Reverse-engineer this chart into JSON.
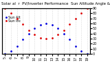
{
  "title": "Solar al  r  PV/Inverter Performance  Sun Altitude Angle & Sun Incidence Angle on PV Panels",
  "legend1": "Sun Alt",
  "legend2": "Sun Inc",
  "x": [
    5,
    6,
    7,
    8,
    9,
    10,
    11,
    12,
    13,
    14,
    15,
    16,
    17,
    18,
    19
  ],
  "sun_altitude": [
    0,
    5,
    15,
    28,
    40,
    50,
    57,
    60,
    57,
    50,
    40,
    28,
    15,
    5,
    0
  ],
  "sun_incidence": [
    90,
    80,
    70,
    58,
    47,
    38,
    32,
    30,
    32,
    38,
    47,
    58,
    70,
    80,
    90
  ],
  "color_altitude": "#0000dd",
  "color_incidence": "#dd0000",
  "ylim": [
    0,
    90
  ],
  "yticks_right": [
    0,
    10,
    20,
    30,
    40,
    50,
    60,
    70,
    80,
    90
  ],
  "xticks": [
    5,
    6,
    7,
    8,
    9,
    10,
    11,
    12,
    13,
    14,
    15,
    16,
    17,
    18,
    19
  ],
  "background_color": "#ffffff",
  "grid_color": "#888888",
  "title_fontsize": 4.0,
  "legend_fontsize": 3.5,
  "tick_fontsize": 3.5,
  "linewidth": 1.2,
  "markersize": 2.0
}
